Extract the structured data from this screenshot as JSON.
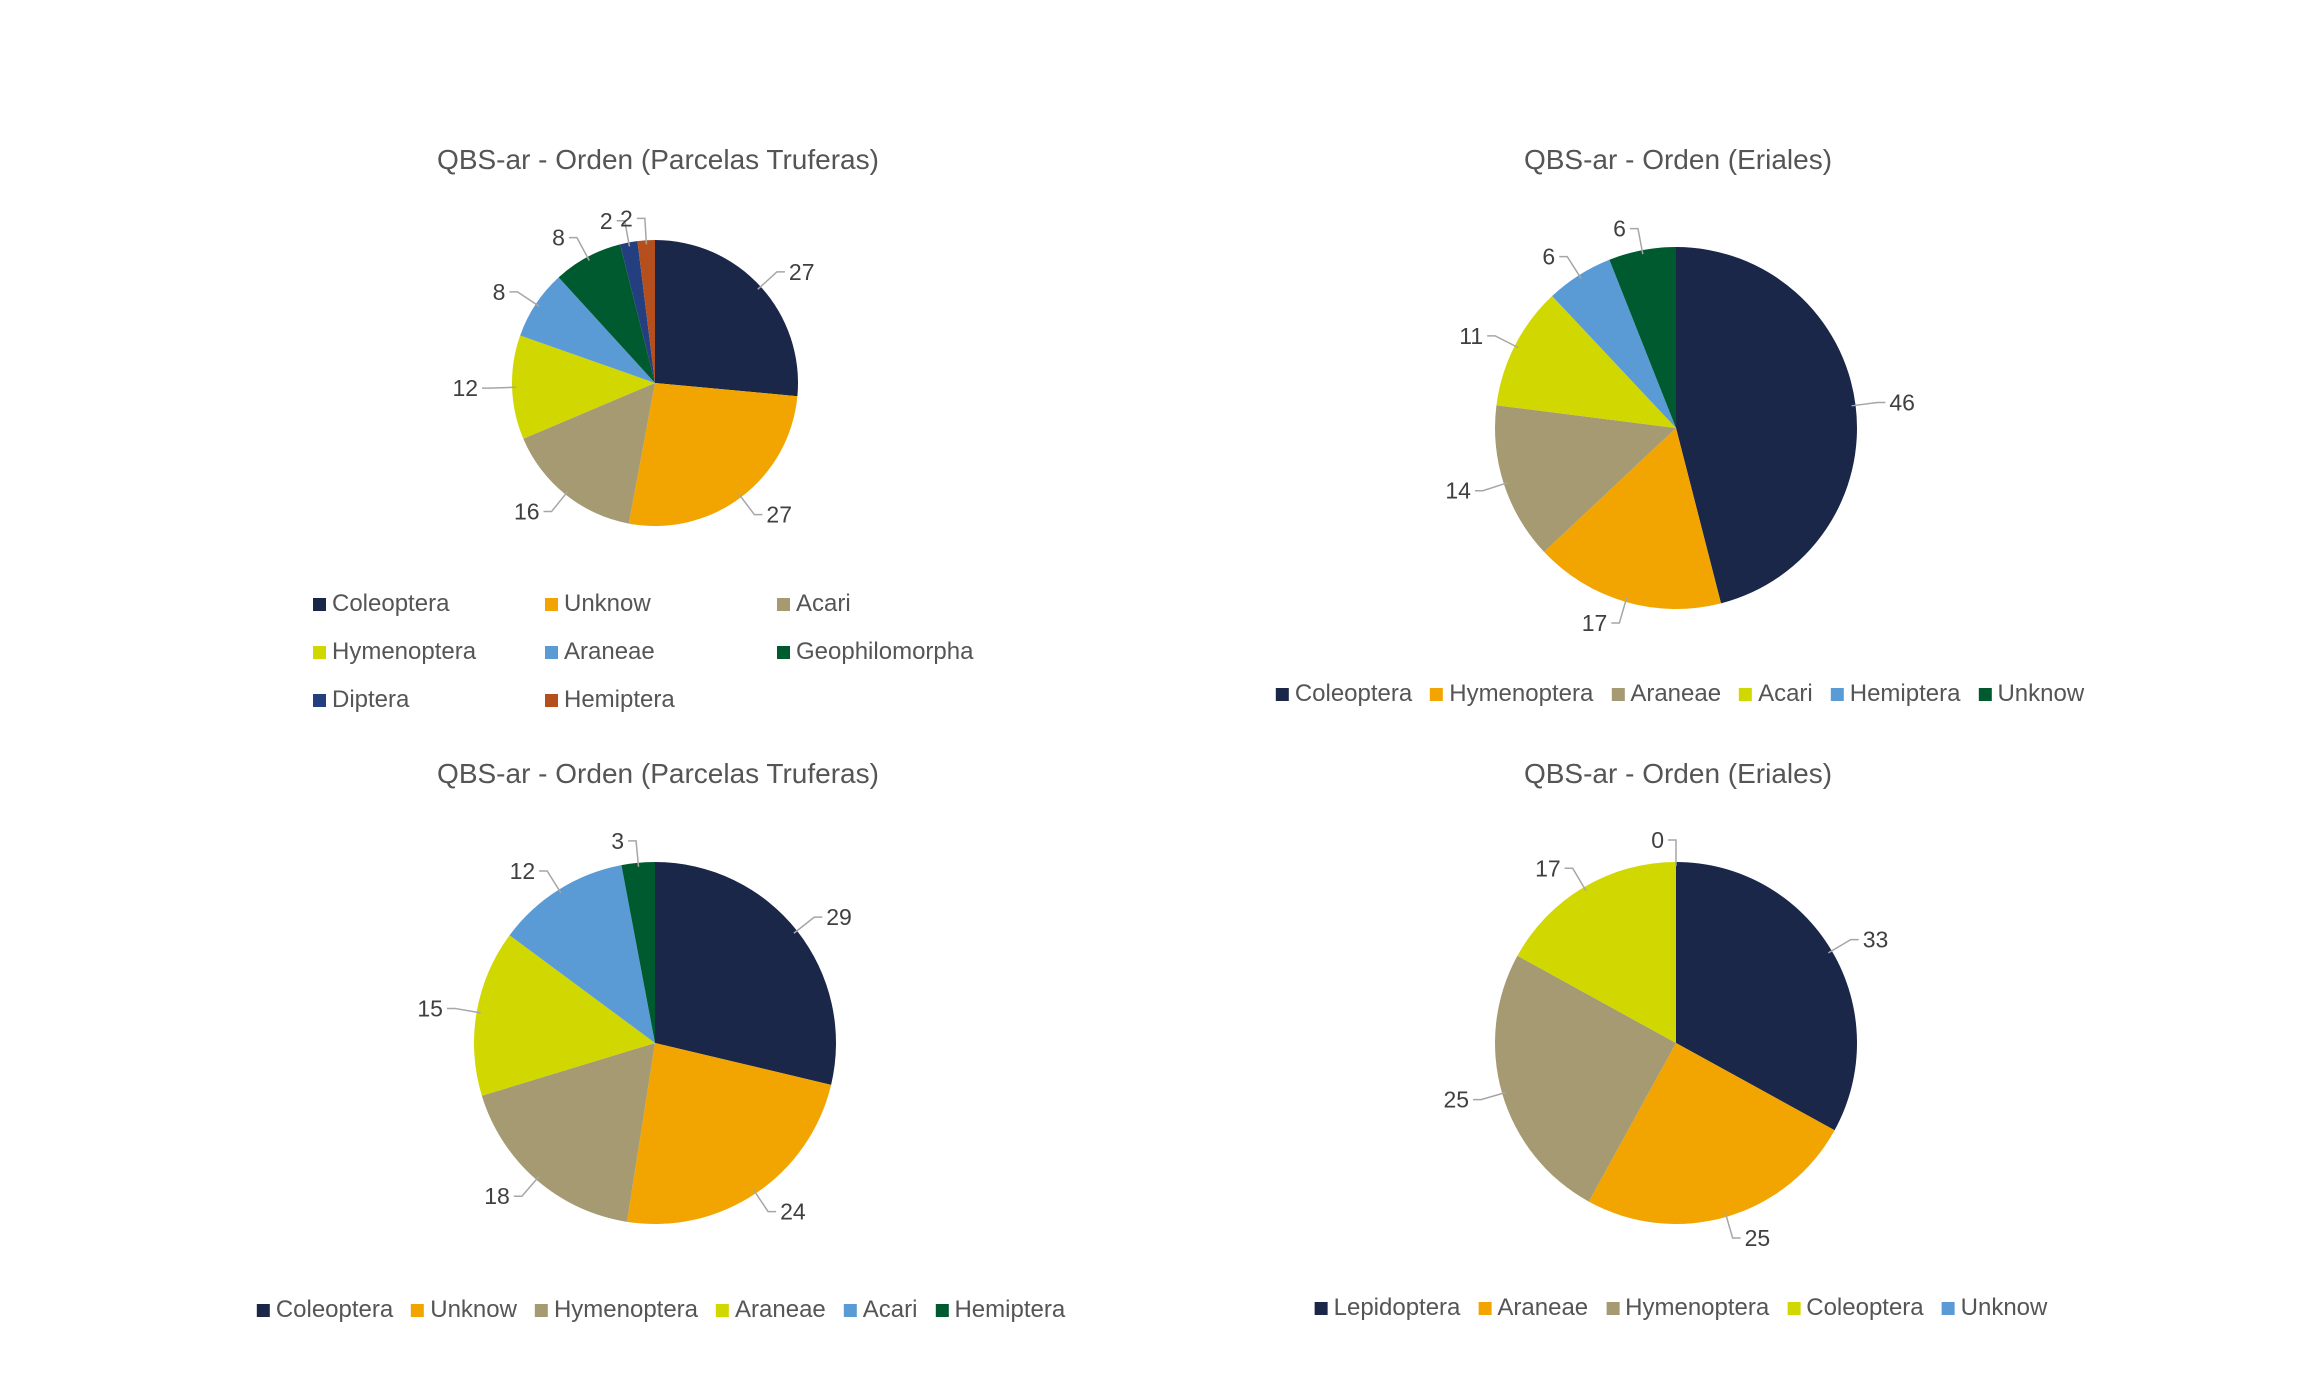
{
  "chart_data": [
    {
      "type": "pie",
      "title": "QBS-ar - Orden (Parcelas Truferas)",
      "categories": [
        "Coleoptera",
        "Unknow",
        "Acari",
        "Hymenoptera",
        "Araneae",
        "Geophilomorpha",
        "Diptera",
        "Hemiptera"
      ],
      "values": [
        27,
        27,
        16,
        12,
        8,
        8,
        2,
        2
      ],
      "colors": [
        "#1b2749",
        "#f2a500",
        "#a59a72",
        "#d1d700",
        "#5b9bd5",
        "#005a30",
        "#243f7f",
        "#b5501e"
      ],
      "data_labels": true,
      "legend": "bottom"
    },
    {
      "type": "pie",
      "title": "QBS-ar - Orden (Eriales)",
      "categories": [
        "Coleoptera",
        "Hymenoptera",
        "Araneae",
        "Acari",
        "Hemiptera",
        "Unknow"
      ],
      "values": [
        46,
        17,
        14,
        11,
        6,
        6
      ],
      "colors": [
        "#1b2749",
        "#f2a500",
        "#a59a72",
        "#d1d700",
        "#5b9bd5",
        "#005a30"
      ],
      "data_labels": true,
      "legend": "bottom"
    },
    {
      "type": "pie",
      "title": "QBS-ar - Orden (Parcelas Truferas)",
      "categories": [
        "Coleoptera",
        "Unknow",
        "Hymenoptera",
        "Araneae",
        "Acari",
        "Hemiptera"
      ],
      "values": [
        29,
        24,
        18,
        15,
        12,
        3
      ],
      "colors": [
        "#1b2749",
        "#f2a500",
        "#a59a72",
        "#d1d700",
        "#5b9bd5",
        "#005a30"
      ],
      "data_labels": true,
      "legend": "bottom"
    },
    {
      "type": "pie",
      "title": "QBS-ar - Orden (Eriales)",
      "categories": [
        "Lepidoptera",
        "Araneae",
        "Hymenoptera",
        "Coleoptera",
        "Unknow"
      ],
      "values": [
        33,
        25,
        25,
        17,
        0
      ],
      "colors": [
        "#1b2749",
        "#f2a500",
        "#a59a72",
        "#d1d700",
        "#5b9bd5"
      ],
      "data_labels": true,
      "legend": "bottom"
    }
  ]
}
